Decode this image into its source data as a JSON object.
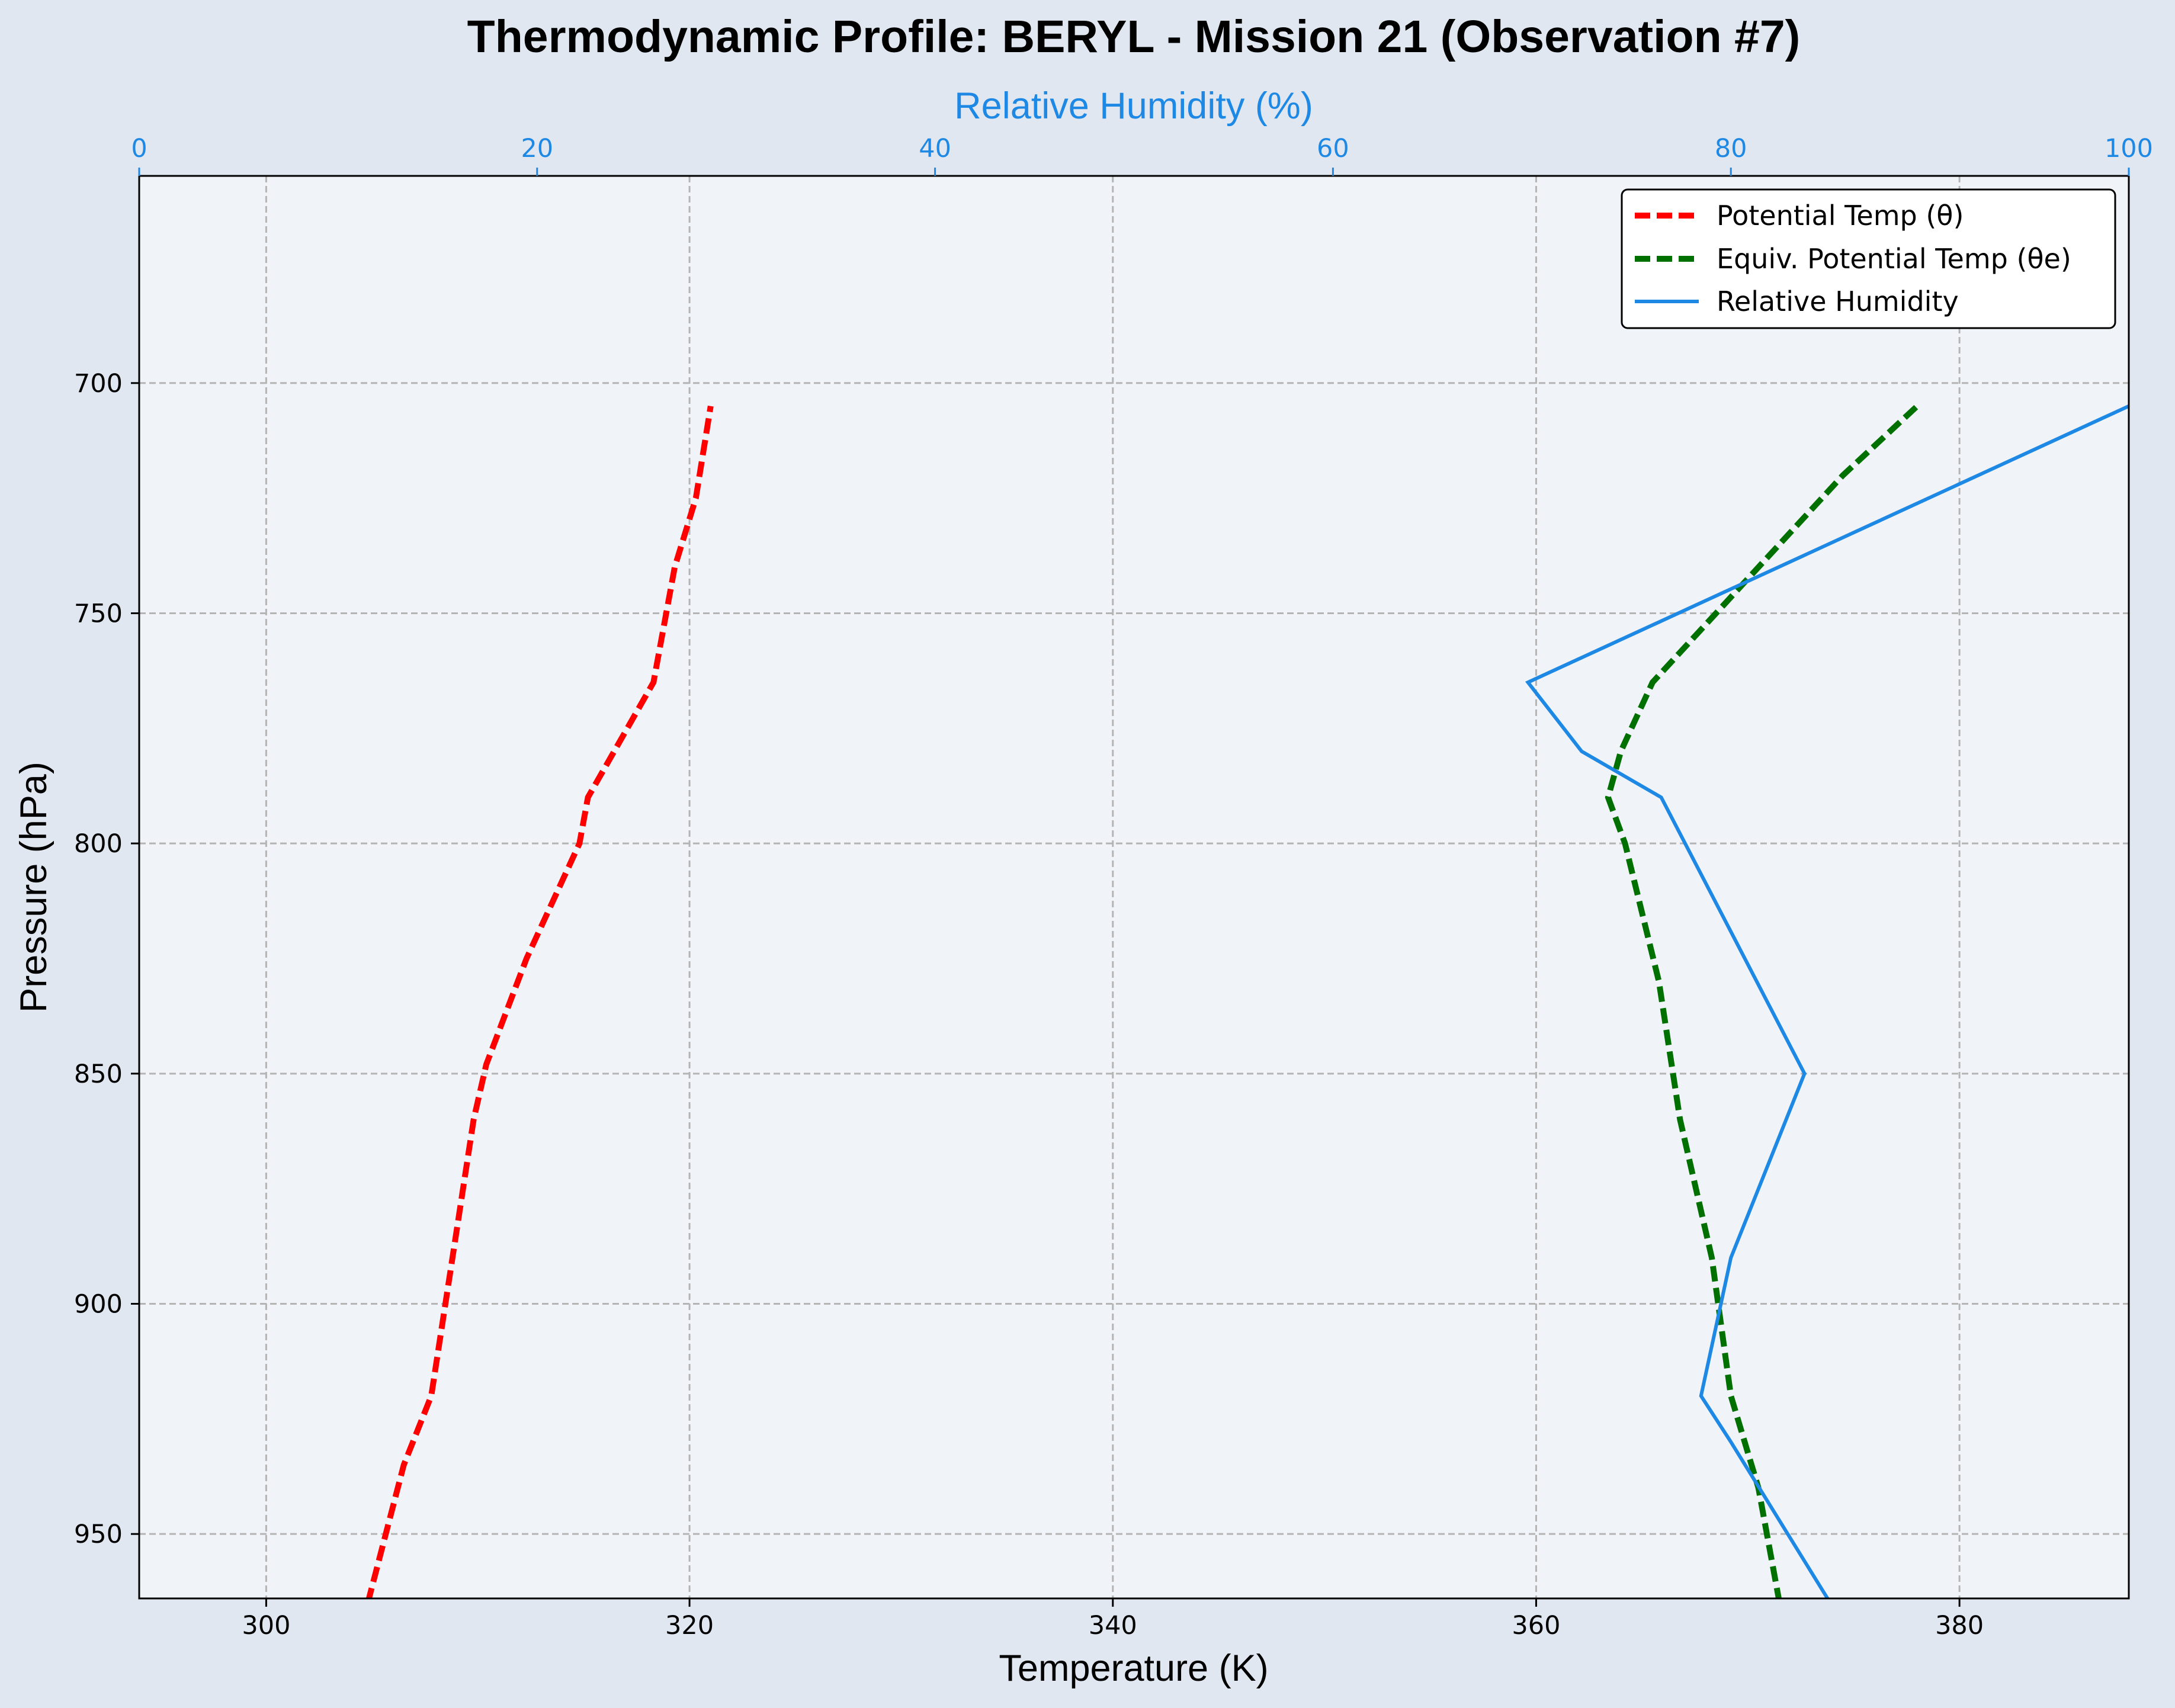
{
  "chart_data": {
    "type": "line",
    "title": "Thermodynamic Profile:  BERYL - Mission 21 (Observation #7)",
    "xlabel": "Temperature (K)",
    "ylabel": "Pressure (hPa)",
    "x2label": "Relative Humidity (%)",
    "xlim": [
      294,
      388
    ],
    "ylim": [
      964,
      655
    ],
    "y_inverted": true,
    "x2lim": [
      0,
      100
    ],
    "xticks": [
      300,
      320,
      340,
      360,
      380
    ],
    "yticks": [
      700,
      750,
      800,
      850,
      900,
      950
    ],
    "x2ticks": [
      0,
      20,
      40,
      60,
      80,
      100
    ],
    "grid": true,
    "legend_position": "top-right",
    "colors": {
      "theta": "#ff0000",
      "theta_e": "#007000",
      "rh": "#1e88e5"
    },
    "series": [
      {
        "name": "Potential Temp (θ)",
        "axis": "temperature",
        "style": "dashed",
        "points": [
          [
            304.8,
            965
          ],
          [
            306.5,
            935
          ],
          [
            307.8,
            920
          ],
          [
            308.8,
            890
          ],
          [
            309.8,
            860
          ],
          [
            310.4,
            848
          ],
          [
            312.3,
            825
          ],
          [
            314.8,
            800
          ],
          [
            315.2,
            790
          ],
          [
            318.3,
            765
          ],
          [
            319.3,
            740
          ],
          [
            320.3,
            725
          ],
          [
            321.0,
            705
          ]
        ]
      },
      {
        "name": "Equiv. Potential Temp (θe)",
        "axis": "temperature",
        "style": "dashed",
        "points": [
          [
            371.5,
            965
          ],
          [
            370.5,
            940
          ],
          [
            369.2,
            920
          ],
          [
            368.3,
            890
          ],
          [
            366.8,
            860
          ],
          [
            365.8,
            830
          ],
          [
            364.2,
            800
          ],
          [
            363.4,
            790
          ],
          [
            364.0,
            780
          ],
          [
            365.5,
            765
          ],
          [
            370.5,
            740
          ],
          [
            374.5,
            720
          ],
          [
            378.0,
            705
          ]
        ]
      },
      {
        "name": "Relative Humidity",
        "axis": "relative_humidity",
        "style": "solid",
        "points": [
          [
            85.0,
            965
          ],
          [
            80.0,
            930
          ],
          [
            78.5,
            920
          ],
          [
            80.0,
            890
          ],
          [
            83.7,
            850
          ],
          [
            76.5,
            790
          ],
          [
            72.5,
            780
          ],
          [
            69.8,
            765
          ],
          [
            100.0,
            705
          ]
        ]
      }
    ]
  }
}
